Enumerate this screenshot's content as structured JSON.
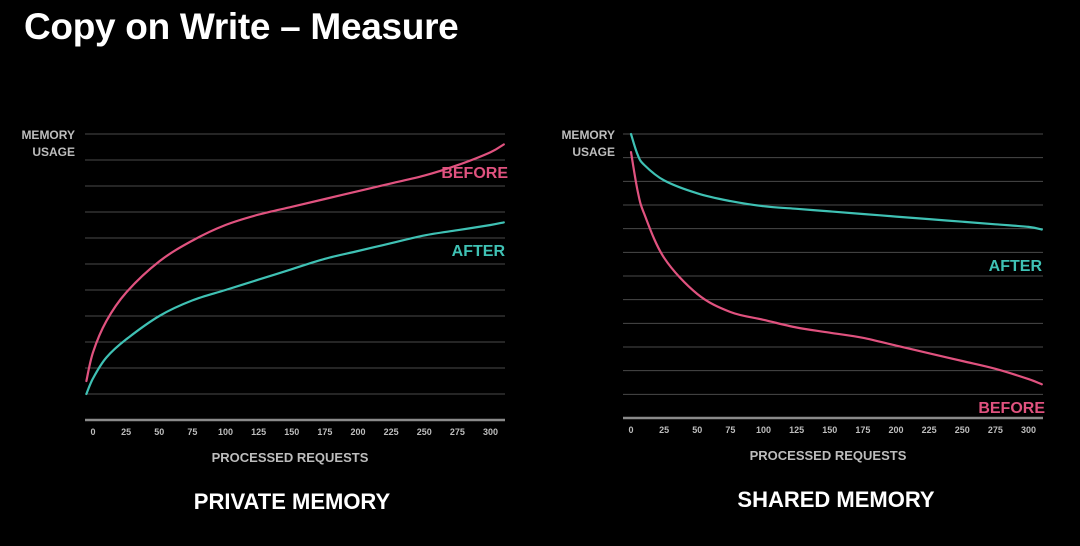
{
  "title": "Copy on Write – Measure",
  "colors": {
    "background": "#000000",
    "grid": "#4a4a4a",
    "axis": "#8a8a8a",
    "before": "#e0527f",
    "after": "#3fc1b4"
  },
  "chart_data": [
    {
      "type": "line",
      "caption": "PRIVATE MEMORY",
      "ylabel": [
        "MEMORY",
        "USAGE"
      ],
      "xlabel": "PROCESSED REQUESTS",
      "xticks": [
        "0",
        "25",
        "50",
        "75",
        "100",
        "125",
        "150",
        "175",
        "200",
        "225",
        "250",
        "275",
        "300"
      ],
      "xlim": [
        0,
        310
      ],
      "ylim": [
        0,
        100
      ],
      "grid": true,
      "series": [
        {
          "name": "BEFORE",
          "color": "#e0527f",
          "x": [
            -5,
            0,
            10,
            25,
            50,
            75,
            100,
            125,
            150,
            175,
            200,
            225,
            250,
            275,
            300,
            310
          ],
          "y": [
            5,
            16,
            28,
            39,
            51,
            59,
            65,
            69,
            72,
            75,
            78,
            81,
            84,
            88,
            93,
            96
          ]
        },
        {
          "name": "AFTER",
          "color": "#3fc1b4",
          "x": [
            -5,
            0,
            10,
            25,
            50,
            75,
            100,
            125,
            150,
            175,
            200,
            225,
            250,
            275,
            300,
            310
          ],
          "y": [
            0,
            6,
            14,
            21,
            30,
            36,
            40,
            44,
            48,
            52,
            55,
            58,
            61,
            63,
            65,
            66
          ]
        }
      ]
    },
    {
      "type": "line",
      "caption": "SHARED MEMORY",
      "ylabel": [
        "MEMORY",
        "USAGE"
      ],
      "xlabel": "PROCESSED REQUESTS",
      "xticks": [
        "0",
        "25",
        "50",
        "75",
        "100",
        "125",
        "150",
        "175",
        "200",
        "225",
        "250",
        "275",
        "300"
      ],
      "xlim": [
        0,
        310
      ],
      "ylim": [
        0,
        100
      ],
      "grid": true,
      "series": [
        {
          "name": "AFTER",
          "color": "#3fc1b4",
          "x": [
            0,
            5,
            10,
            25,
            50,
            75,
            100,
            125,
            150,
            175,
            200,
            225,
            250,
            275,
            300,
            310
          ],
          "y": [
            100,
            92,
            88,
            82,
            77,
            74,
            72,
            71,
            70,
            69,
            68,
            67,
            66,
            65,
            64,
            63
          ]
        },
        {
          "name": "BEFORE",
          "color": "#e0527f",
          "x": [
            0,
            5,
            10,
            25,
            50,
            75,
            100,
            125,
            150,
            175,
            200,
            225,
            250,
            275,
            300,
            310
          ],
          "y": [
            93,
            78,
            69,
            52,
            38,
            31,
            28,
            25,
            23,
            21,
            18,
            15,
            12,
            9,
            5,
            3
          ]
        }
      ]
    }
  ]
}
